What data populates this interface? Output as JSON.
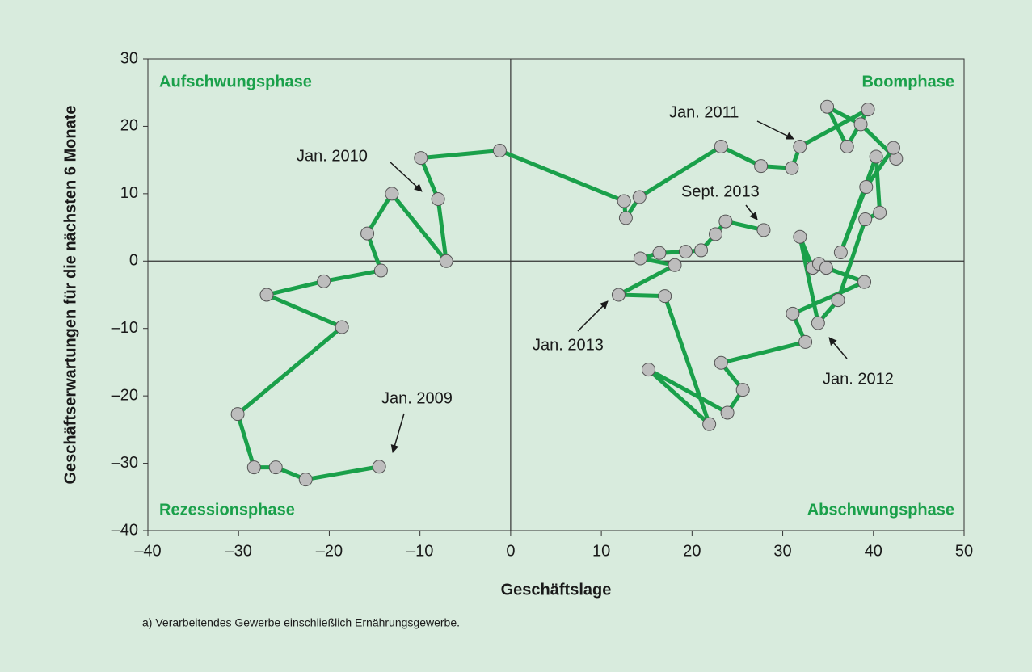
{
  "chart_data": {
    "type": "scatter",
    "connected": true,
    "xlabel": "Geschäftslage",
    "ylabel": "Geschäftserwartungen für die nächsten 6 Monate",
    "quadrant_labels": [
      "Aufschwungsphase",
      "Boomphase",
      "Rezessionsphase",
      "Abschwungsphase"
    ],
    "annotations": [
      "Jan. 2009",
      "Jan. 2010",
      "Jan. 2011",
      "Sept. 2013",
      "Jan. 2013",
      "Jan. 2012"
    ],
    "footnote": "a) Verarbeitendes Gewerbe einschließlich Ernährungsgewerbe.",
    "color": "#1aa04a",
    "marker_color": "#bdbdbd",
    "x": [
      -14.5,
      -22.6,
      -25.9,
      -28.3,
      -30.1,
      -18.6,
      -26.9,
      -20.6,
      -14.3,
      -15.8,
      -13.1,
      -7.1,
      -8.0,
      -9.9,
      -1.2,
      12.5,
      12.7,
      14.2,
      23.2,
      27.6,
      31.0,
      31.9,
      39.4,
      37.1,
      34.9,
      38.6,
      42.5,
      42.2,
      39.2,
      36.4,
      40.3,
      40.7,
      39.1,
      36.1,
      33.9,
      31.9,
      33.3,
      34.0,
      34.8,
      39.0,
      31.1,
      32.5,
      23.2,
      25.6,
      23.9,
      15.2,
      21.9,
      17.0,
      11.9,
      18.1,
      14.3,
      16.4,
      19.3,
      21.0,
      22.6,
      23.7,
      27.9
    ],
    "values": [
      -30.5,
      -32.4,
      -30.6,
      -30.6,
      -22.7,
      -9.8,
      -5.0,
      -3.0,
      -1.4,
      4.1,
      10.0,
      0,
      9.2,
      15.3,
      16.4,
      8.9,
      6.4,
      9.5,
      17.0,
      14.1,
      13.8,
      17.0,
      22.5,
      17.0,
      22.9,
      20.3,
      15.2,
      16.8,
      11.0,
      1.3,
      15.5,
      7.2,
      6.2,
      -5.8,
      -9.2,
      3.6,
      -1.0,
      -0.4,
      -1.0,
      -3.1,
      -7.8,
      -12.0,
      -15.1,
      -19.1,
      -22.5,
      -16.1,
      -24.2,
      -5.2,
      -5.0,
      -0.6,
      0.4,
      1.2,
      1.4,
      1.6,
      4.0,
      5.9,
      4.6
    ],
    "xlim": [
      -40,
      50
    ],
    "xticks": [
      {
        "value": -40,
        "label": "–40"
      },
      {
        "value": -30,
        "label": "–30"
      },
      {
        "value": -20,
        "label": "–20"
      },
      {
        "value": -10,
        "label": "–10"
      },
      0,
      10,
      20,
      30,
      40,
      50
    ],
    "ylim": [
      -40,
      30
    ],
    "yticks": [
      {
        "value": -40,
        "label": "–40"
      },
      {
        "value": -30,
        "label": "–30"
      },
      {
        "value": -20,
        "label": "–20"
      },
      {
        "value": -10,
        "label": "–10"
      },
      0,
      10,
      20,
      30
    ]
  }
}
